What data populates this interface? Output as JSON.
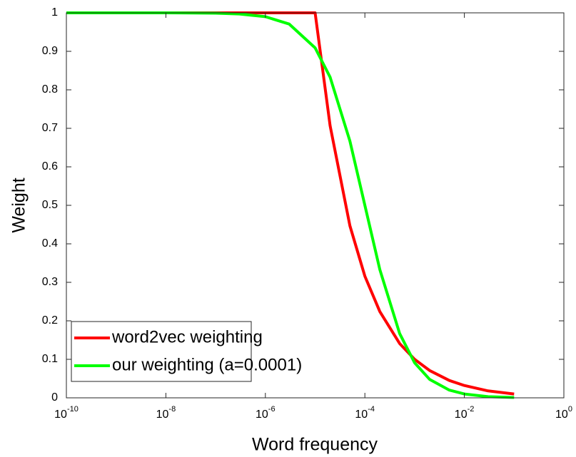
{
  "chart_data": {
    "type": "line",
    "xlabel": "Word frequency",
    "ylabel": "Weight",
    "xscale": "log",
    "x": [
      1e-10,
      1e-09,
      1e-08,
      1e-07,
      3e-07,
      1e-06,
      3e-06,
      1e-05,
      2e-05,
      5e-05,
      0.0001,
      0.0002,
      0.0005,
      0.001,
      0.002,
      0.005,
      0.01,
      0.03,
      0.1
    ],
    "series": [
      {
        "name": "word2vec weighting",
        "color": "#ff0000",
        "values": [
          1,
          1,
          1,
          1,
          1,
          1,
          1,
          1,
          0.707,
          0.447,
          0.316,
          0.224,
          0.141,
          0.1,
          0.071,
          0.045,
          0.032,
          0.018,
          0.01
        ]
      },
      {
        "name": "our weighting (a=0.0001)",
        "color": "#00ff00",
        "values": [
          1,
          1,
          1,
          0.999,
          0.997,
          0.99,
          0.971,
          0.909,
          0.833,
          0.667,
          0.5,
          0.333,
          0.167,
          0.091,
          0.048,
          0.02,
          0.01,
          0.003,
          0.001
        ]
      }
    ],
    "xlim": [
      1e-10,
      1
    ],
    "xticks": [
      {
        "value": 1e-10,
        "label": "10^-10"
      },
      {
        "value": 1e-08,
        "label": "10^-8"
      },
      {
        "value": 1e-06,
        "label": "10^-6"
      },
      {
        "value": 0.0001,
        "label": "10^-4"
      },
      {
        "value": 0.01,
        "label": "10^-2"
      },
      {
        "value": 1,
        "label": "10^0"
      }
    ],
    "ylim": [
      0,
      1
    ],
    "yticks": [
      0,
      0.1,
      0.2,
      0.3,
      0.4,
      0.5,
      0.6,
      0.7,
      0.8,
      0.9,
      1
    ],
    "legend": "lower left",
    "grid": false
  }
}
